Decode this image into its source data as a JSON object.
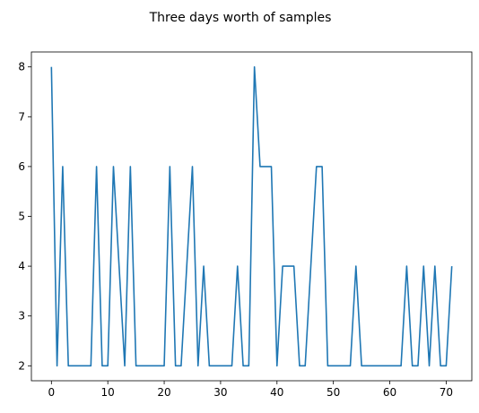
{
  "chart_data": {
    "type": "line",
    "title": "Three days worth of samples",
    "xlabel": "",
    "ylabel": "",
    "x": [
      0,
      1,
      2,
      3,
      4,
      5,
      6,
      7,
      8,
      9,
      10,
      11,
      12,
      13,
      14,
      15,
      16,
      17,
      18,
      19,
      20,
      21,
      22,
      23,
      24,
      25,
      26,
      27,
      28,
      29,
      30,
      31,
      32,
      33,
      34,
      35,
      36,
      37,
      38,
      39,
      40,
      41,
      42,
      43,
      44,
      45,
      46,
      47,
      48,
      49,
      50,
      51,
      52,
      53,
      54,
      55,
      56,
      57,
      58,
      59,
      60,
      61,
      62,
      63,
      64,
      65,
      66,
      67,
      68,
      69,
      70,
      71
    ],
    "series": [
      {
        "color": "#1f77b4",
        "values": [
          8,
          2,
          6,
          2,
          2,
          2,
          2,
          2,
          6,
          2,
          2,
          6,
          4,
          2,
          6,
          2,
          2,
          2,
          2,
          2,
          2,
          6,
          2,
          2,
          4,
          6,
          2,
          4,
          2,
          2,
          2,
          2,
          2,
          4,
          2,
          2,
          8,
          6,
          6,
          6,
          2,
          4,
          4,
          4,
          2,
          2,
          4,
          6,
          6,
          2,
          2,
          2,
          2,
          2,
          4,
          2,
          2,
          2,
          2,
          2,
          2,
          2,
          2,
          4,
          2,
          2,
          4,
          2,
          4,
          2,
          2,
          4
        ]
      }
    ],
    "xlim": [
      -3.55,
      74.55
    ],
    "ylim": [
      1.7,
      8.3
    ],
    "xticks": [
      0,
      10,
      20,
      30,
      40,
      50,
      60,
      70
    ],
    "yticks": [
      2,
      3,
      4,
      5,
      6,
      7,
      8
    ],
    "grid": false,
    "legend": "none"
  }
}
